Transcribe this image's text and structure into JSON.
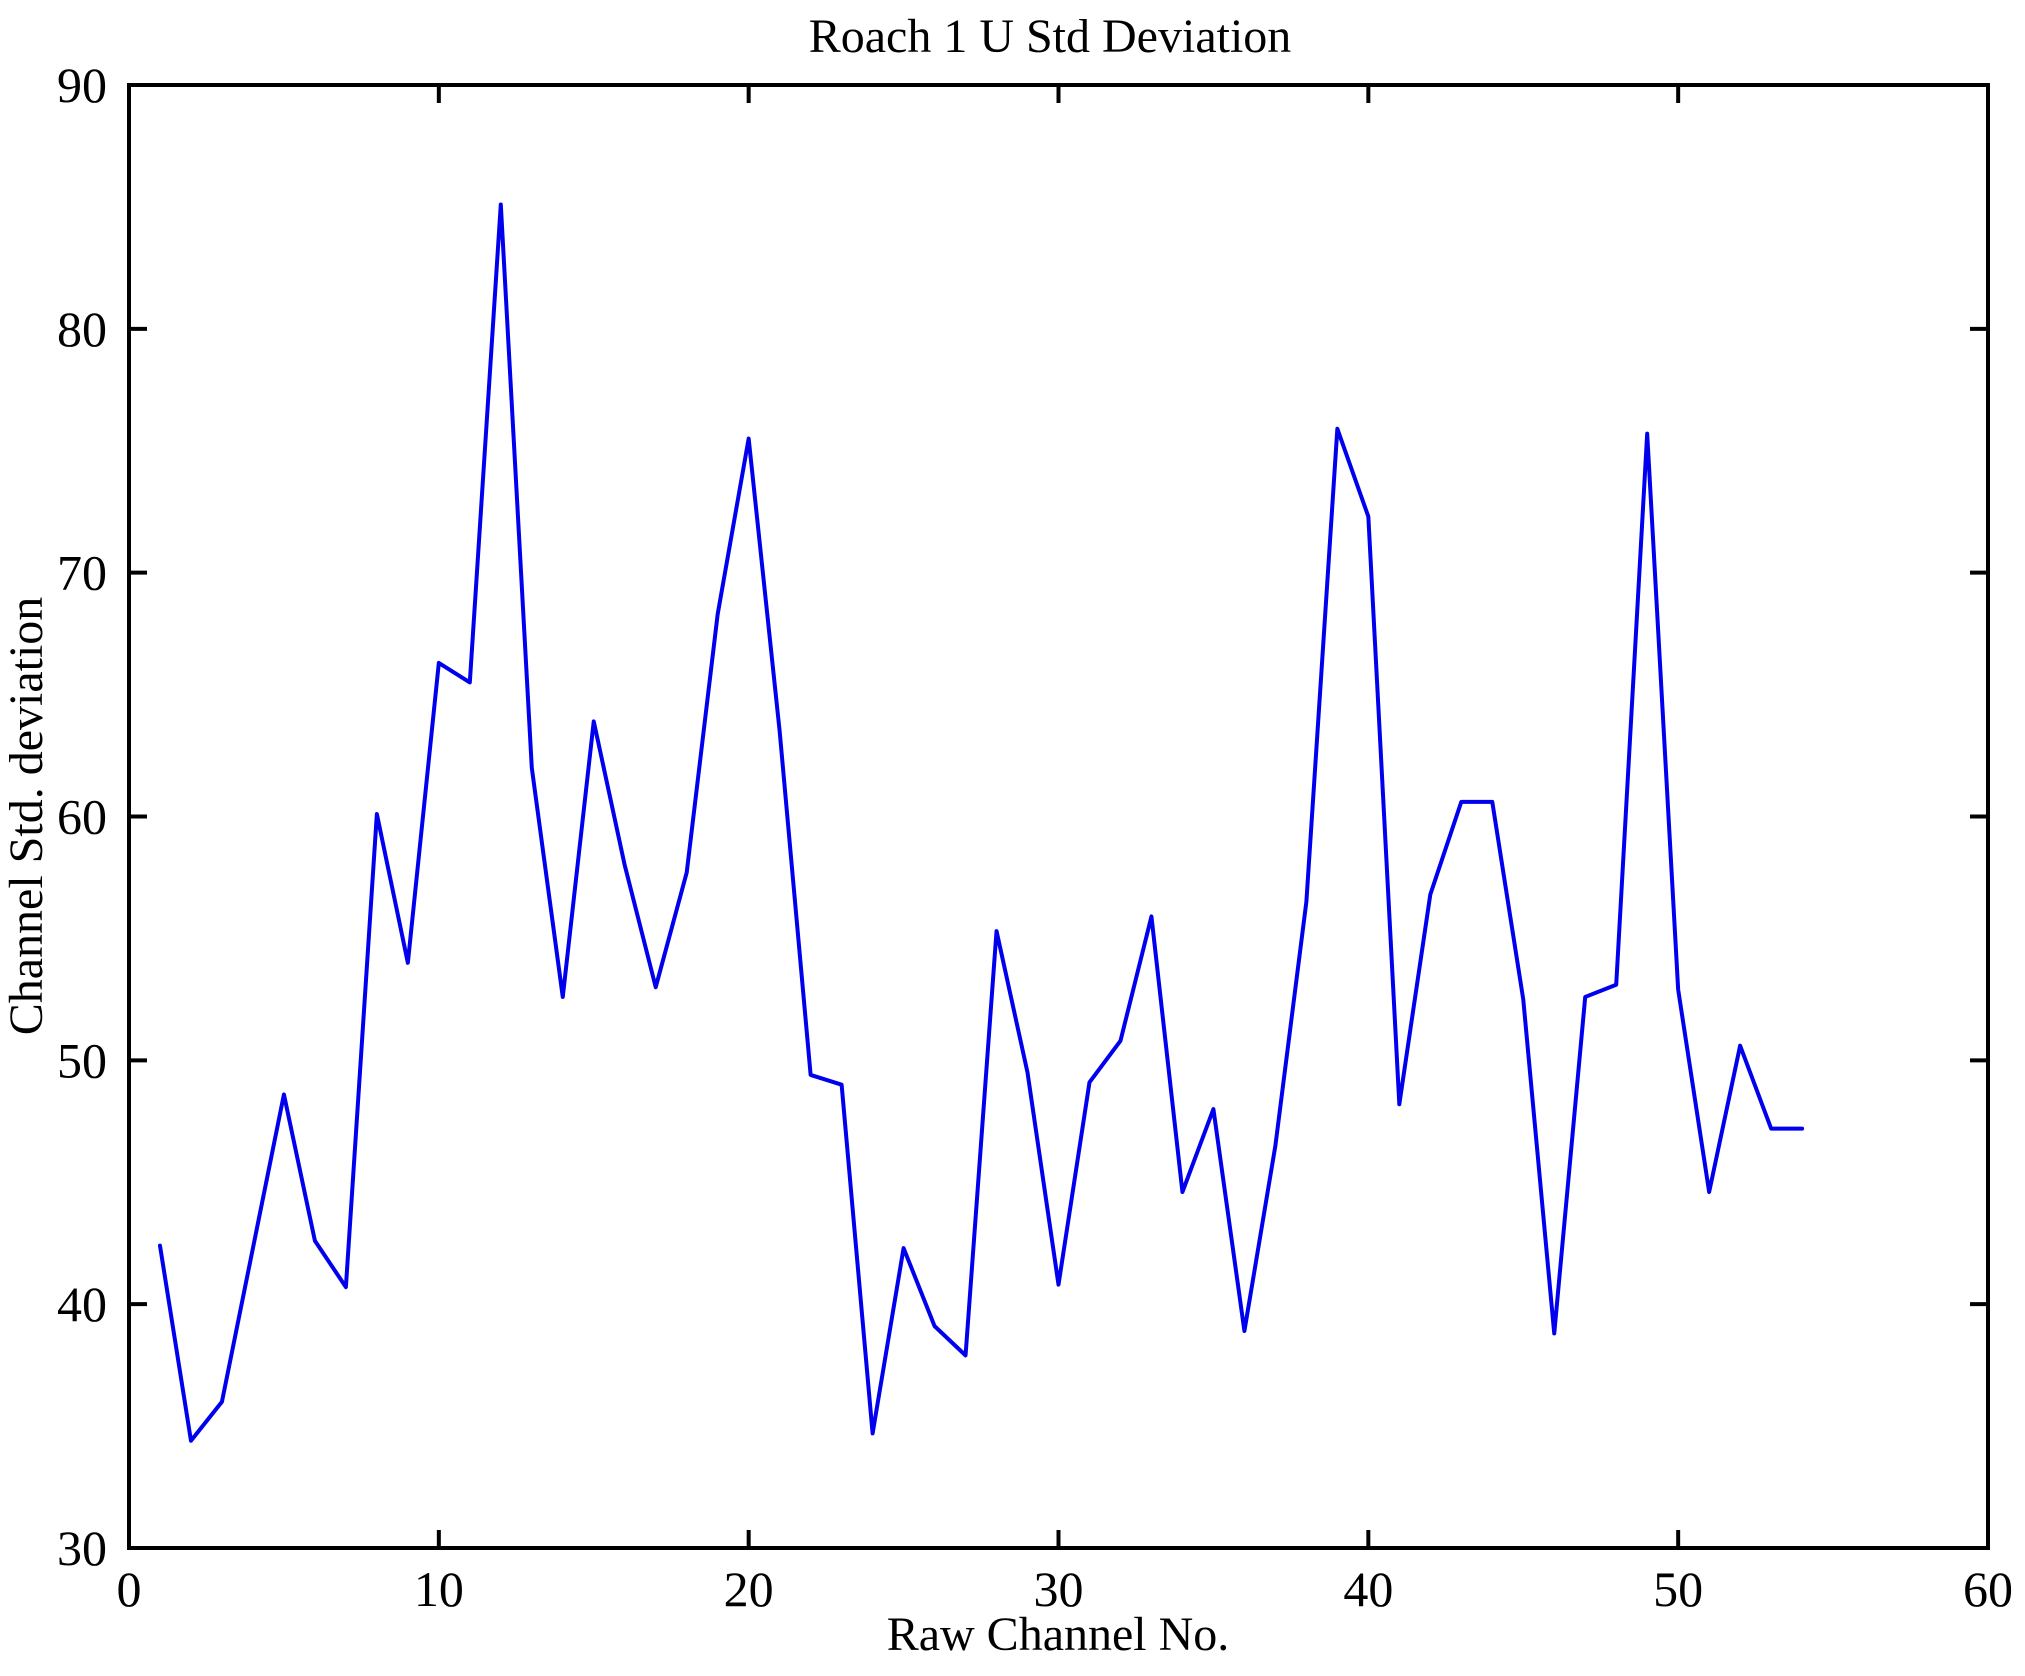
{
  "figure": {
    "background": "#ffffff",
    "frame_color": "#000000"
  },
  "chart_data": {
    "type": "line",
    "title": "Roach 1 U Std Deviation",
    "xlabel": "Raw Channel No.",
    "ylabel": "Channel Std. deviation",
    "xlim": [
      0,
      60
    ],
    "ylim": [
      30,
      90
    ],
    "x_ticks": [
      0,
      10,
      20,
      30,
      40,
      50,
      60
    ],
    "y_ticks": [
      30,
      40,
      50,
      60,
      70,
      80,
      90
    ],
    "grid": false,
    "legend": "none",
    "frame": "box-with-inward-ticks",
    "line_color": "#0000EE",
    "line_width": 4,
    "series": [
      {
        "name": "channel-std-deviation",
        "x": [
          1,
          2,
          3,
          4,
          5,
          6,
          7,
          8,
          9,
          10,
          11,
          12,
          13,
          14,
          15,
          16,
          17,
          18,
          19,
          20,
          21,
          22,
          23,
          24,
          25,
          26,
          27,
          28,
          29,
          30,
          31,
          32,
          33,
          34,
          35,
          36,
          37,
          38,
          39,
          40,
          41,
          42,
          43,
          44,
          45,
          46,
          47,
          48,
          49,
          50,
          51,
          52,
          53,
          54
        ],
        "y": [
          42.4,
          34.4,
          36.0,
          42.3,
          48.6,
          42.6,
          40.7,
          60.1,
          54.0,
          66.3,
          65.5,
          85.1,
          62.0,
          52.6,
          63.9,
          58.0,
          53.0,
          57.7,
          68.3,
          75.5,
          63.5,
          49.4,
          49.0,
          34.7,
          42.3,
          39.1,
          37.9,
          55.3,
          49.5,
          40.8,
          49.1,
          50.8,
          55.9,
          44.6,
          48.0,
          38.9,
          46.5,
          56.5,
          75.9,
          72.3,
          48.2,
          56.8,
          60.6,
          60.6,
          52.5,
          38.8,
          52.6,
          53.1,
          75.7,
          52.9,
          44.6,
          50.6,
          47.2,
          47.2
        ]
      }
    ]
  }
}
